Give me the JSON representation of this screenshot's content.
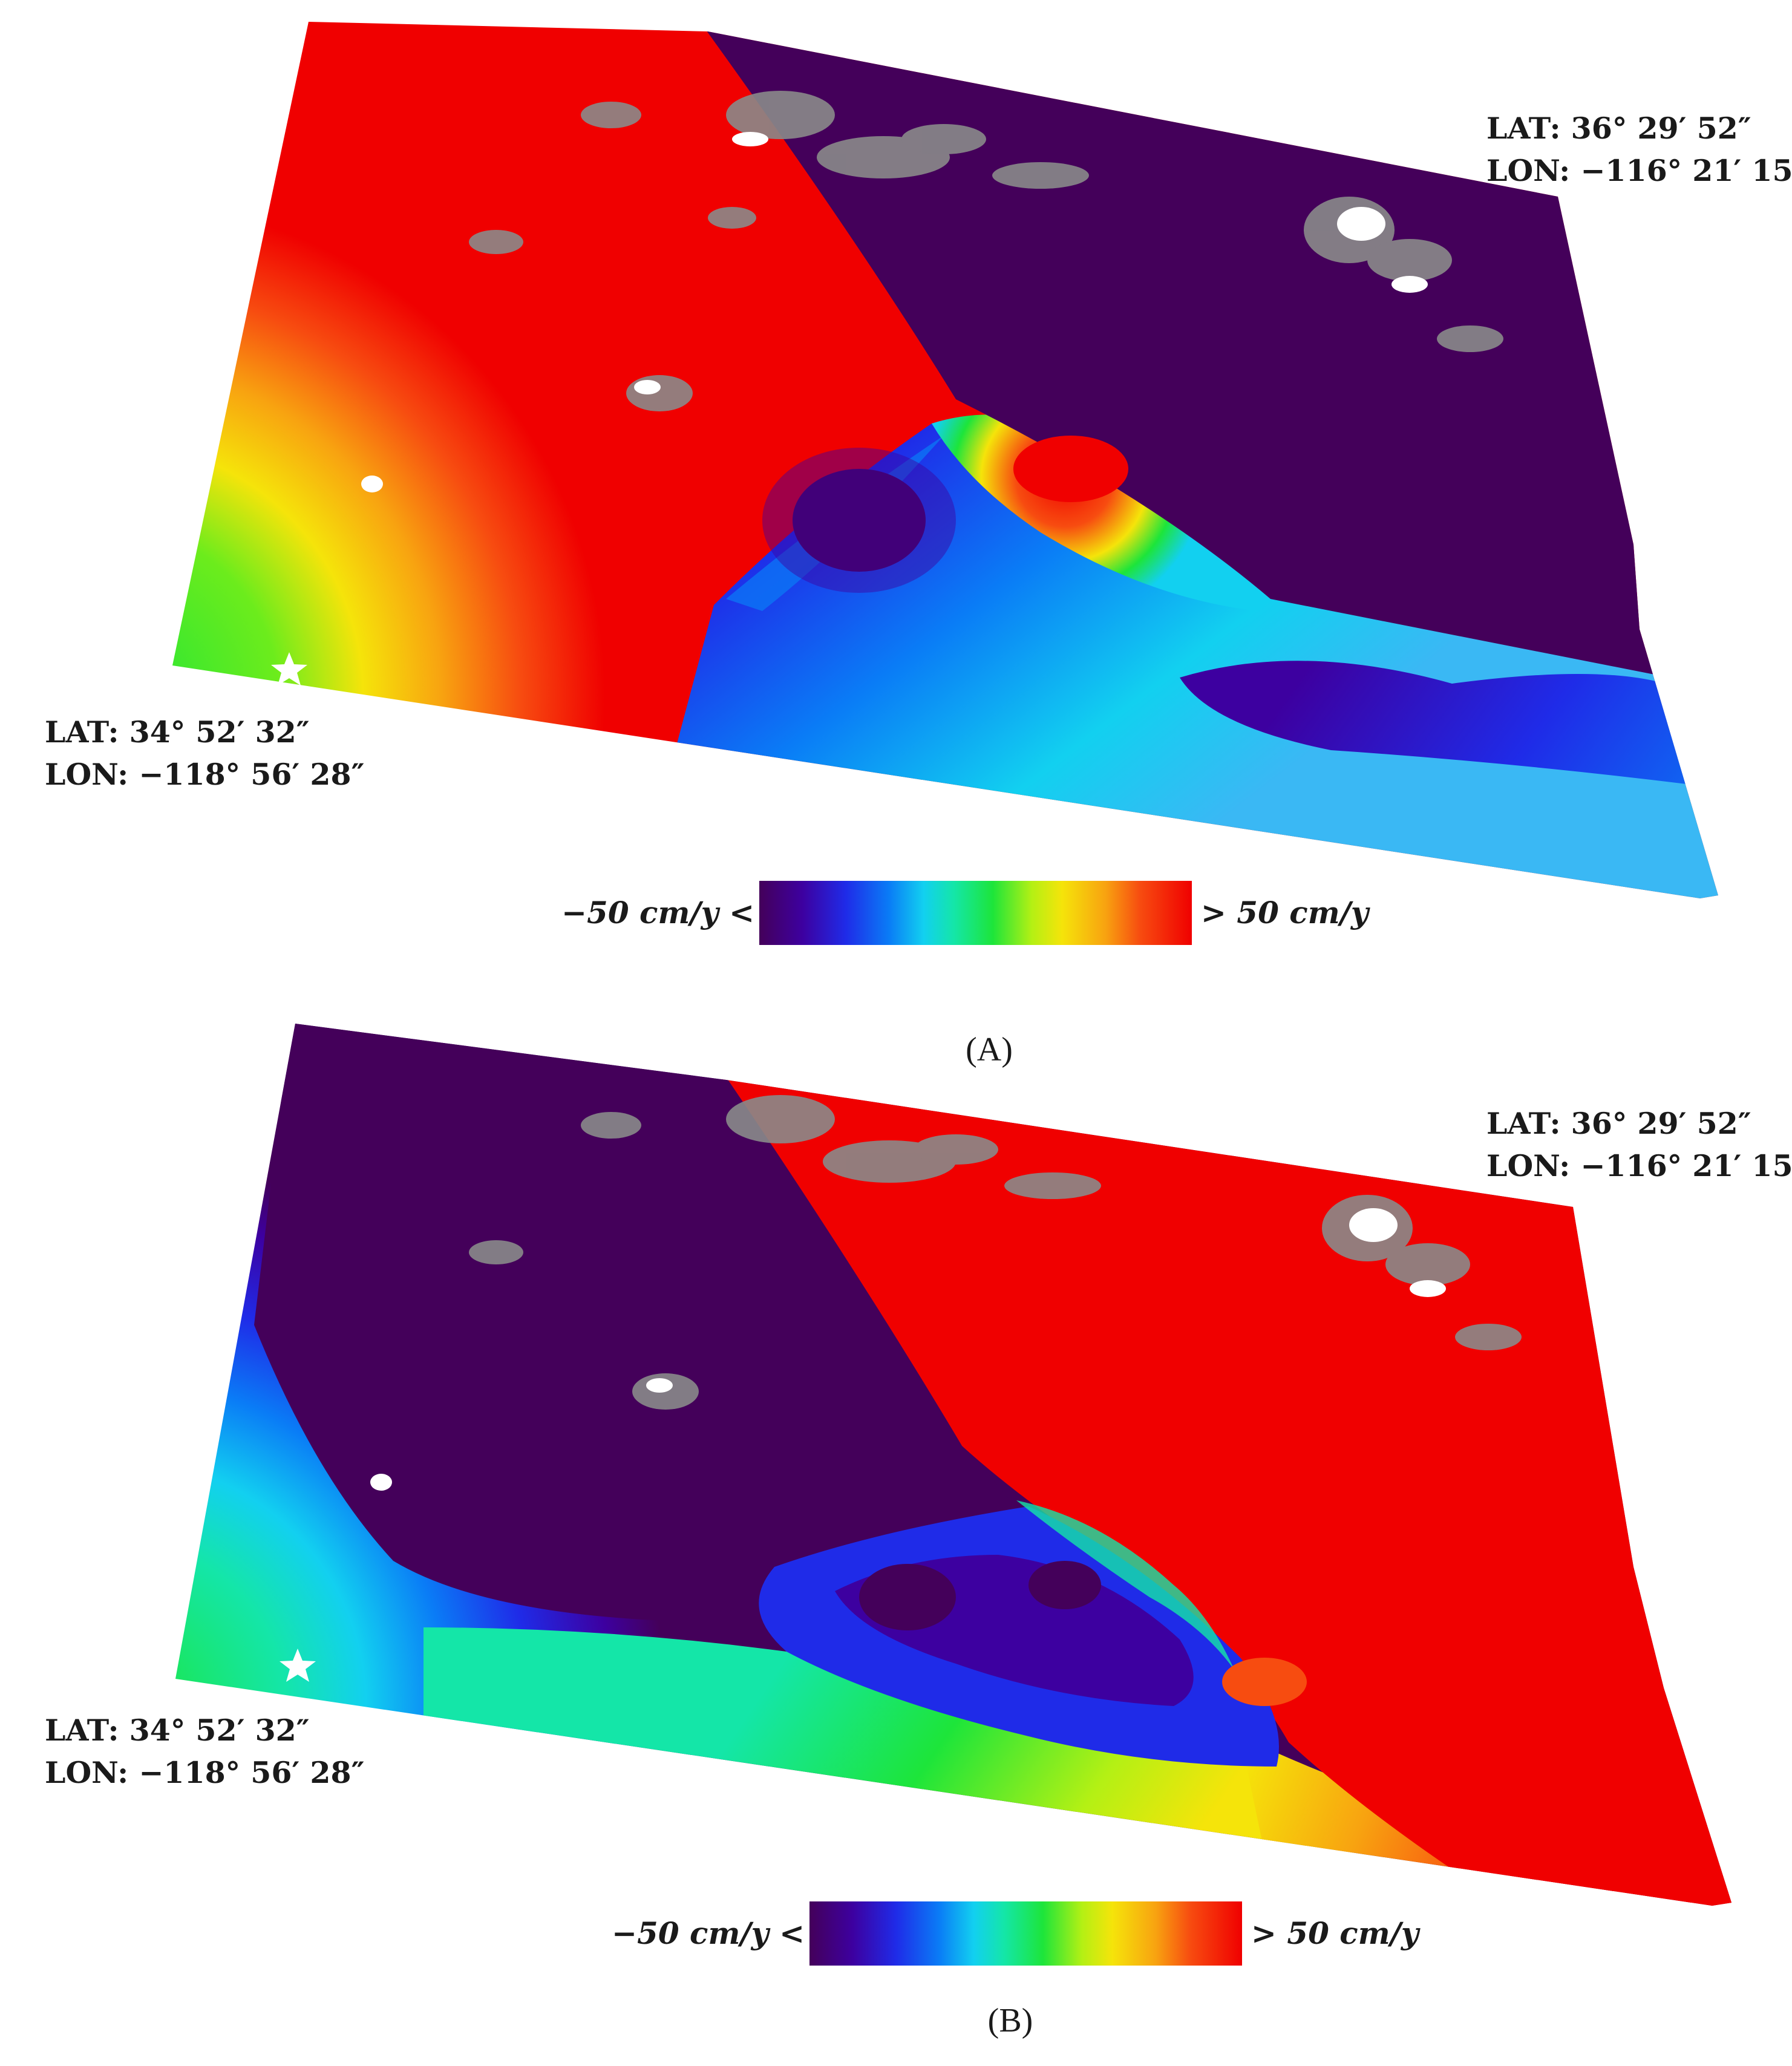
{
  "figure": {
    "panels": [
      {
        "caption": "(A)",
        "corner_ne": {
          "lat": "LAT: 36° 29′ 52″",
          "lon": "LON: −116° 21′ 15″"
        },
        "corner_sw": {
          "lat": "LAT: 34° 52′ 32″",
          "lon": "LON: −118° 56′ 28″"
        },
        "colorbar": {
          "min_label": "−50 cm/y <",
          "max_label": "> 50 cm/y"
        },
        "marker": "white-star"
      },
      {
        "caption": "(B)",
        "corner_ne": {
          "lat": "LAT: 36° 29′ 52″",
          "lon": "LON: −116° 21′ 15″"
        },
        "corner_sw": {
          "lat": "LAT: 34° 52′ 32″",
          "lon": "LON: −118° 56′ 28″"
        },
        "colorbar": {
          "min_label": "−50 cm/y <",
          "max_label": "> 50 cm/y"
        },
        "marker": "white-star"
      }
    ],
    "colors": {
      "deep_purple": "#44005a",
      "blue": "#1f2be8",
      "cyan": "#12d0f0",
      "green": "#1de53a",
      "yellow": "#f5e40a",
      "orange": "#f8a310",
      "red": "#f00000",
      "gray_patch": "#8a8a8a"
    }
  }
}
